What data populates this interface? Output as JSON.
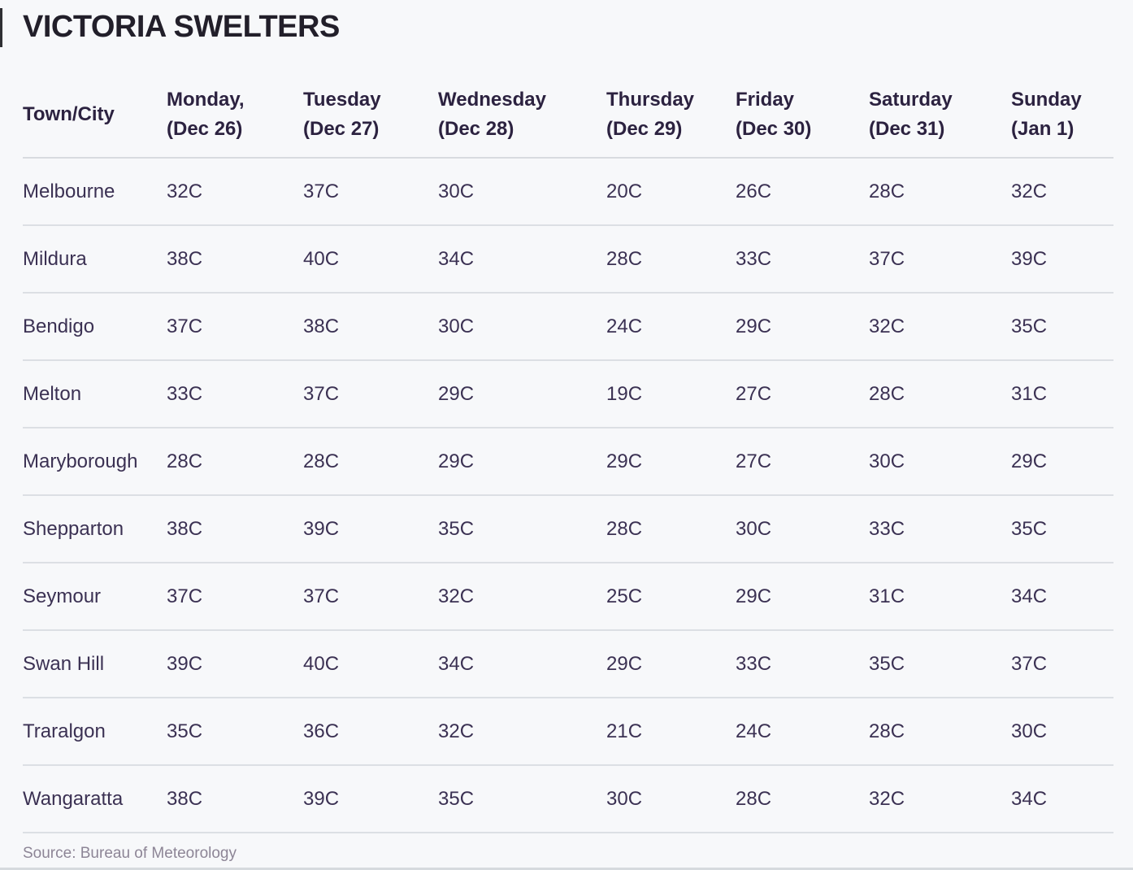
{
  "title": "VICTORIA SWELTERS",
  "source": "Source: Bureau of Meteorology",
  "table": {
    "columns": [
      {
        "line1": "Town/City",
        "line2": ""
      },
      {
        "line1": "Monday,",
        "line2": "(Dec 26)"
      },
      {
        "line1": "Tuesday",
        "line2": "(Dec 27)"
      },
      {
        "line1": "Wednesday",
        "line2": "(Dec 28)"
      },
      {
        "line1": "Thursday",
        "line2": "(Dec 29)"
      },
      {
        "line1": "Friday",
        "line2": "(Dec 30)"
      },
      {
        "line1": "Saturday",
        "line2": "(Dec 31)"
      },
      {
        "line1": "Sunday",
        "line2": "(Jan 1)"
      }
    ],
    "rows": [
      {
        "town": "Melbourne",
        "temps": [
          "32C",
          "37C",
          "30C",
          "20C",
          "26C",
          "28C",
          "32C"
        ]
      },
      {
        "town": "Mildura",
        "temps": [
          "38C",
          "40C",
          "34C",
          "28C",
          "33C",
          "37C",
          "39C"
        ]
      },
      {
        "town": "Bendigo",
        "temps": [
          "37C",
          "38C",
          "30C",
          "24C",
          "29C",
          "32C",
          "35C"
        ]
      },
      {
        "town": "Melton",
        "temps": [
          "33C",
          "37C",
          "29C",
          "19C",
          "27C",
          "28C",
          "31C"
        ]
      },
      {
        "town": "Maryborough",
        "temps": [
          "28C",
          "28C",
          "29C",
          "29C",
          "27C",
          "30C",
          "29C"
        ]
      },
      {
        "town": "Shepparton",
        "temps": [
          "38C",
          "39C",
          "35C",
          "28C",
          "30C",
          "33C",
          "35C"
        ]
      },
      {
        "town": "Seymour",
        "temps": [
          "37C",
          "37C",
          "32C",
          "25C",
          "29C",
          "31C",
          "34C"
        ]
      },
      {
        "town": "Swan Hill",
        "temps": [
          "39C",
          "40C",
          "34C",
          "29C",
          "33C",
          "35C",
          "37C"
        ]
      },
      {
        "town": "Traralgon",
        "temps": [
          "35C",
          "36C",
          "32C",
          "21C",
          "24C",
          "28C",
          "30C"
        ]
      },
      {
        "town": "Wangaratta",
        "temps": [
          "38C",
          "39C",
          "35C",
          "30C",
          "28C",
          "32C",
          "34C"
        ]
      }
    ]
  },
  "colors": {
    "background": "#f7f8fa",
    "title_text": "#221f2a",
    "header_text": "#2c2240",
    "cell_text": "#3b3153",
    "separator": "#dcdfe4",
    "source_text": "#8d8596"
  },
  "chart_data": {
    "type": "table",
    "title": "VICTORIA SWELTERS",
    "columns": [
      "Town/City",
      "Monday, (Dec 26)",
      "Tuesday (Dec 27)",
      "Wednesday (Dec 28)",
      "Thursday (Dec 29)",
      "Friday (Dec 30)",
      "Saturday (Dec 31)",
      "Sunday (Jan 1)"
    ],
    "rows": [
      [
        "Melbourne",
        "32C",
        "37C",
        "30C",
        "20C",
        "26C",
        "28C",
        "32C"
      ],
      [
        "Mildura",
        "38C",
        "40C",
        "34C",
        "28C",
        "33C",
        "37C",
        "39C"
      ],
      [
        "Bendigo",
        "37C",
        "38C",
        "30C",
        "24C",
        "29C",
        "32C",
        "35C"
      ],
      [
        "Melton",
        "33C",
        "37C",
        "29C",
        "19C",
        "27C",
        "28C",
        "31C"
      ],
      [
        "Maryborough",
        "28C",
        "28C",
        "29C",
        "29C",
        "27C",
        "30C",
        "29C"
      ],
      [
        "Shepparton",
        "38C",
        "39C",
        "35C",
        "28C",
        "30C",
        "33C",
        "35C"
      ],
      [
        "Seymour",
        "37C",
        "37C",
        "32C",
        "25C",
        "29C",
        "31C",
        "34C"
      ],
      [
        "Swan Hill",
        "39C",
        "40C",
        "34C",
        "29C",
        "33C",
        "35C",
        "37C"
      ],
      [
        "Traralgon",
        "35C",
        "36C",
        "32C",
        "21C",
        "24C",
        "28C",
        "30C"
      ],
      [
        "Wangaratta",
        "38C",
        "39C",
        "35C",
        "30C",
        "28C",
        "32C",
        "34C"
      ]
    ],
    "units": "degrees Celsius",
    "source": "Source: Bureau of Meteorology"
  }
}
